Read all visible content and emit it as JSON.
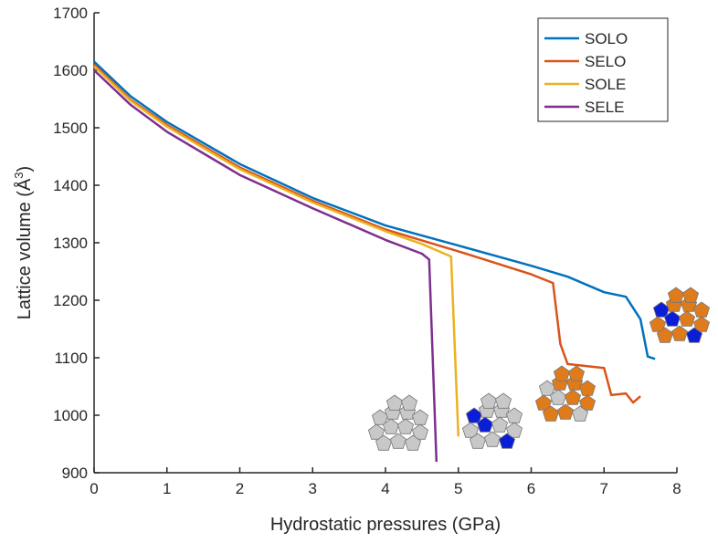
{
  "chart_data": {
    "type": "line",
    "title": "",
    "xlabel": "Hydrostatic pressures (GPa)",
    "ylabel": "Lattice volume (Å",
    "ylabel_sup": "3",
    "ylabel_close": ")",
    "xlim": [
      0,
      8
    ],
    "ylim": [
      900,
      1700
    ],
    "xticks": [
      0,
      1,
      2,
      3,
      4,
      5,
      6,
      7,
      8
    ],
    "yticks": [
      900,
      1000,
      1100,
      1200,
      1300,
      1400,
      1500,
      1600,
      1700
    ],
    "grid": false,
    "legend_position": "top-right",
    "series": [
      {
        "name": "SOLO",
        "color": "#0072BD",
        "x": [
          0,
          0.5,
          1,
          2,
          3,
          4,
          5,
          6,
          6.5,
          7,
          7.3,
          7.5,
          7.6,
          7.7
        ],
        "y": [
          1615,
          1555,
          1510,
          1437,
          1378,
          1330,
          1295,
          1260,
          1241,
          1214,
          1206,
          1167,
          1102,
          1098
        ]
      },
      {
        "name": "SELO",
        "color": "#D95319",
        "x": [
          0,
          0.5,
          1,
          2,
          3,
          4,
          5,
          6,
          6.3,
          6.4,
          6.5,
          7,
          7.1,
          7.3,
          7.4,
          7.5
        ],
        "y": [
          1610,
          1549,
          1505,
          1431,
          1373,
          1323,
          1285,
          1245,
          1230,
          1124,
          1089,
          1082,
          1035,
          1038,
          1022,
          1033
        ]
      },
      {
        "name": "SOLE",
        "color": "#EDB120",
        "x": [
          0,
          0.5,
          1,
          2,
          3,
          4,
          4.5,
          4.9,
          5.0
        ],
        "y": [
          1607,
          1547,
          1502,
          1428,
          1370,
          1320,
          1298,
          1276,
          963
        ]
      },
      {
        "name": "SELE",
        "color": "#7E2F8E",
        "x": [
          0,
          0.5,
          1,
          2,
          3,
          4,
          4.5,
          4.6,
          4.7
        ],
        "y": [
          1600,
          1540,
          1493,
          1418,
          1360,
          1305,
          1281,
          1271,
          919
        ]
      }
    ],
    "insets": [
      {
        "name": "grey-cluster",
        "colors": [
          "#c8c8c8"
        ]
      },
      {
        "name": "grey-blue-cluster",
        "colors": [
          "#c8c8c8",
          "#0a1ed8"
        ]
      },
      {
        "name": "orange-grey-cluster",
        "colors": [
          "#e07b1c",
          "#c8c8c8"
        ]
      },
      {
        "name": "orange-blue-cluster",
        "colors": [
          "#e07b1c",
          "#0a1ed8"
        ]
      }
    ]
  }
}
